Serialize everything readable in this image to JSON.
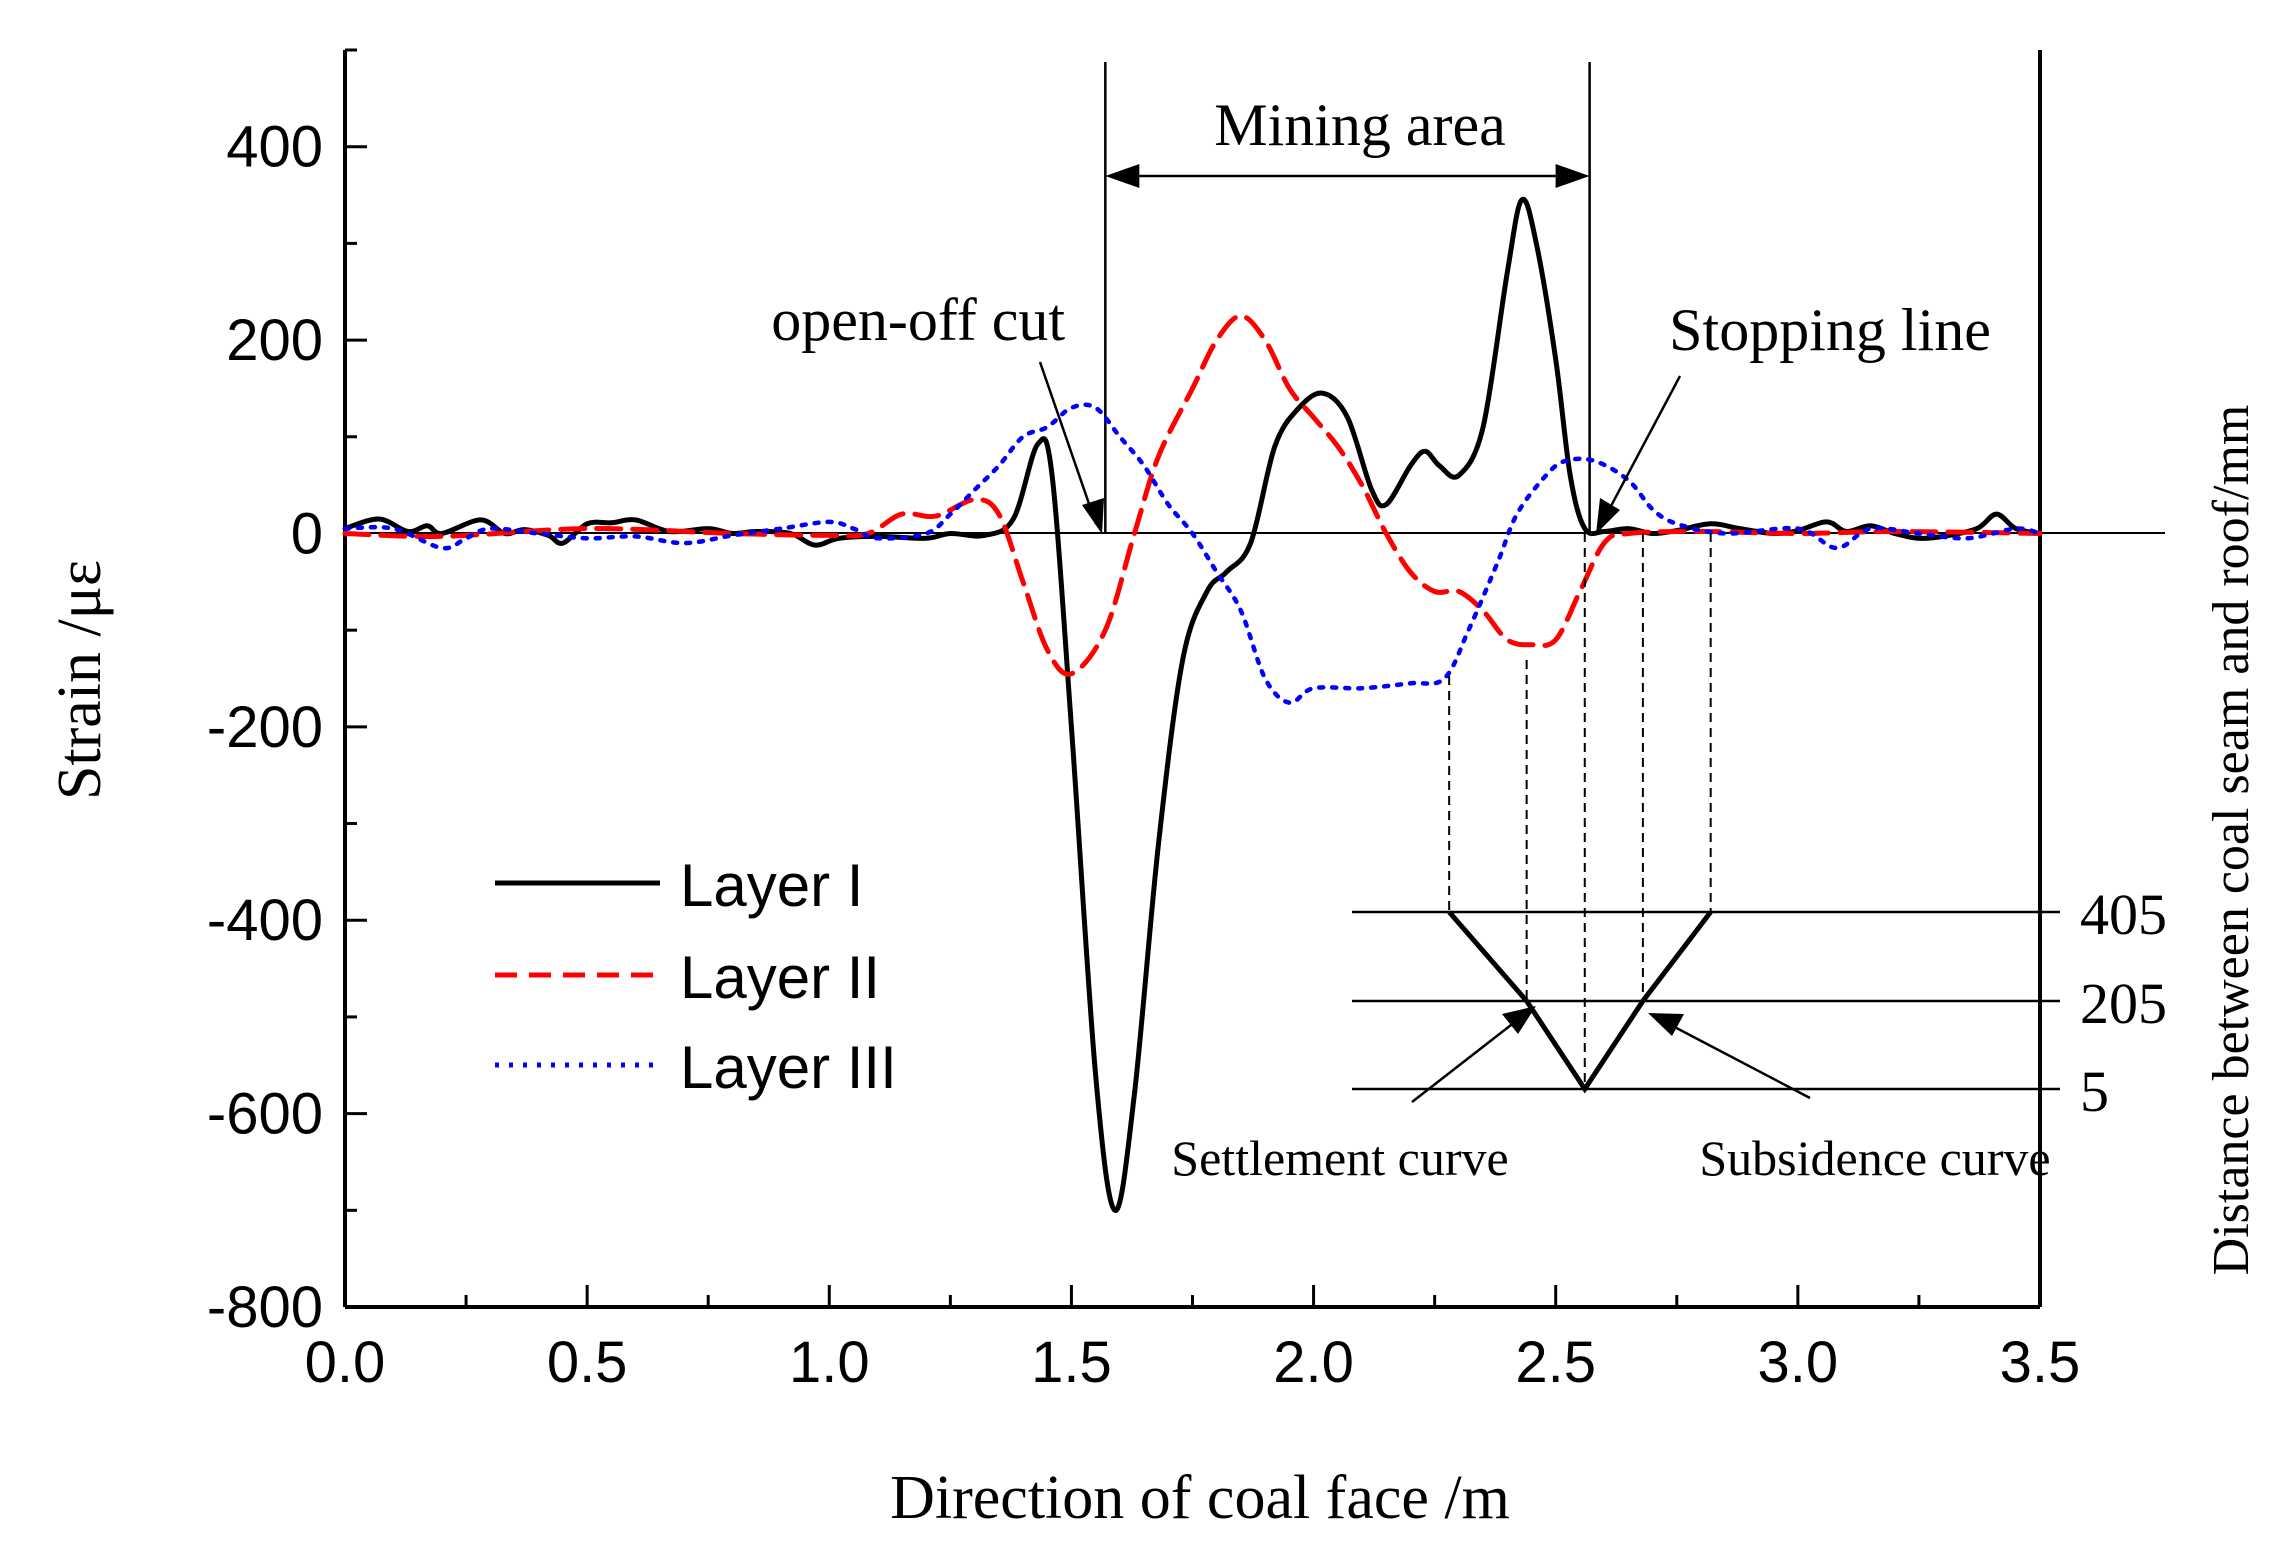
{
  "chart_data": {
    "type": "line",
    "xlabel": "Direction of coal face  /m",
    "ylabel": "Strain  /με",
    "y2label": "Distance between coal seam and roof/mm",
    "xlim": [
      0,
      3.5
    ],
    "ylim": [
      -800,
      500
    ],
    "x_ticks": [
      "0.0",
      "0.5",
      "1.0",
      "1.5",
      "2.0",
      "2.5",
      "3.0",
      "3.5"
    ],
    "y_ticks": [
      "400",
      "200",
      "0",
      "-200",
      "-400",
      "-600",
      "-800"
    ],
    "legend_position": "lower-left",
    "series": [
      {
        "name": "Layer I",
        "color": "#000000",
        "style": "solid",
        "points": [
          [
            0,
            5
          ],
          [
            0.07,
            15
          ],
          [
            0.13,
            2
          ],
          [
            0.17,
            8
          ],
          [
            0.2,
            0
          ],
          [
            0.28,
            14
          ],
          [
            0.33,
            0
          ],
          [
            0.37,
            4
          ],
          [
            0.42,
            -2
          ],
          [
            0.45,
            -10
          ],
          [
            0.5,
            10
          ],
          [
            0.55,
            11
          ],
          [
            0.6,
            14
          ],
          [
            0.67,
            2
          ],
          [
            0.75,
            5
          ],
          [
            0.8,
            0
          ],
          [
            0.85,
            2
          ],
          [
            0.92,
            0
          ],
          [
            0.97,
            -12
          ],
          [
            1.02,
            -5
          ],
          [
            1.1,
            -3
          ],
          [
            1.2,
            -5
          ],
          [
            1.25,
            0
          ],
          [
            1.32,
            -2
          ],
          [
            1.38,
            15
          ],
          [
            1.43,
            92
          ],
          [
            1.46,
            60
          ],
          [
            1.5,
            -200
          ],
          [
            1.55,
            -560
          ],
          [
            1.59,
            -700
          ],
          [
            1.63,
            -580
          ],
          [
            1.68,
            -320
          ],
          [
            1.73,
            -130
          ],
          [
            1.78,
            -60
          ],
          [
            1.82,
            -40
          ],
          [
            1.87,
            -10
          ],
          [
            1.92,
            90
          ],
          [
            1.97,
            130
          ],
          [
            2.02,
            145
          ],
          [
            2.07,
            120
          ],
          [
            2.12,
            45
          ],
          [
            2.15,
            30
          ],
          [
            2.2,
            70
          ],
          [
            2.23,
            85
          ],
          [
            2.26,
            70
          ],
          [
            2.3,
            60
          ],
          [
            2.35,
            110
          ],
          [
            2.4,
            270
          ],
          [
            2.43,
            345
          ],
          [
            2.46,
            300
          ],
          [
            2.5,
            180
          ],
          [
            2.53,
            60
          ],
          [
            2.56,
            5
          ],
          [
            2.6,
            2
          ],
          [
            2.65,
            5
          ],
          [
            2.7,
            0
          ],
          [
            2.75,
            3
          ],
          [
            2.82,
            10
          ],
          [
            2.88,
            5
          ],
          [
            2.95,
            0
          ],
          [
            3.0,
            3
          ],
          [
            3.06,
            12
          ],
          [
            3.1,
            2
          ],
          [
            3.15,
            8
          ],
          [
            3.2,
            0
          ],
          [
            3.25,
            -5
          ],
          [
            3.3,
            -3
          ],
          [
            3.37,
            5
          ],
          [
            3.41,
            20
          ],
          [
            3.45,
            5
          ],
          [
            3.5,
            0
          ]
        ]
      },
      {
        "name": "Layer II",
        "color": "#ff0000",
        "style": "dashed",
        "points": [
          [
            0,
            0
          ],
          [
            0.2,
            -3
          ],
          [
            0.5,
            5
          ],
          [
            0.8,
            0
          ],
          [
            1.0,
            -2
          ],
          [
            1.08,
            0
          ],
          [
            1.15,
            20
          ],
          [
            1.22,
            18
          ],
          [
            1.3,
            35
          ],
          [
            1.35,
            20
          ],
          [
            1.4,
            -50
          ],
          [
            1.45,
            -120
          ],
          [
            1.5,
            -145
          ],
          [
            1.57,
            -100
          ],
          [
            1.63,
            0
          ],
          [
            1.68,
            80
          ],
          [
            1.75,
            150
          ],
          [
            1.8,
            200
          ],
          [
            1.85,
            225
          ],
          [
            1.9,
            200
          ],
          [
            1.95,
            150
          ],
          [
            2.0,
            120
          ],
          [
            2.05,
            90
          ],
          [
            2.1,
            50
          ],
          [
            2.15,
            0
          ],
          [
            2.2,
            -40
          ],
          [
            2.25,
            -60
          ],
          [
            2.3,
            -60
          ],
          [
            2.35,
            -80
          ],
          [
            2.4,
            -110
          ],
          [
            2.45,
            -115
          ],
          [
            2.5,
            -110
          ],
          [
            2.55,
            -60
          ],
          [
            2.6,
            -10
          ],
          [
            2.65,
            0
          ],
          [
            2.8,
            2
          ],
          [
            3.0,
            0
          ],
          [
            3.2,
            2
          ],
          [
            3.5,
            0
          ]
        ]
      },
      {
        "name": "Layer III",
        "color": "#0000ff",
        "style": "dotted",
        "points": [
          [
            0,
            5
          ],
          [
            0.1,
            5
          ],
          [
            0.2,
            -15
          ],
          [
            0.25,
            -5
          ],
          [
            0.3,
            5
          ],
          [
            0.4,
            0
          ],
          [
            0.5,
            -5
          ],
          [
            0.6,
            -3
          ],
          [
            0.7,
            -10
          ],
          [
            0.8,
            -2
          ],
          [
            0.9,
            5
          ],
          [
            1.0,
            12
          ],
          [
            1.05,
            5
          ],
          [
            1.1,
            -5
          ],
          [
            1.2,
            0
          ],
          [
            1.25,
            20
          ],
          [
            1.3,
            45
          ],
          [
            1.35,
            70
          ],
          [
            1.4,
            100
          ],
          [
            1.45,
            110
          ],
          [
            1.5,
            130
          ],
          [
            1.55,
            130
          ],
          [
            1.6,
            100
          ],
          [
            1.65,
            70
          ],
          [
            1.7,
            30
          ],
          [
            1.75,
            0
          ],
          [
            1.8,
            -40
          ],
          [
            1.85,
            -80
          ],
          [
            1.9,
            -150
          ],
          [
            1.95,
            -175
          ],
          [
            2.0,
            -160
          ],
          [
            2.1,
            -160
          ],
          [
            2.2,
            -155
          ],
          [
            2.27,
            -150
          ],
          [
            2.32,
            -100
          ],
          [
            2.38,
            -30
          ],
          [
            2.42,
            20
          ],
          [
            2.48,
            60
          ],
          [
            2.52,
            75
          ],
          [
            2.58,
            75
          ],
          [
            2.65,
            55
          ],
          [
            2.7,
            25
          ],
          [
            2.75,
            10
          ],
          [
            2.85,
            0
          ],
          [
            3.0,
            5
          ],
          [
            3.08,
            -15
          ],
          [
            3.15,
            5
          ],
          [
            3.25,
            0
          ],
          [
            3.35,
            -5
          ],
          [
            3.45,
            5
          ],
          [
            3.5,
            0
          ]
        ]
      }
    ],
    "annotations": {
      "mining_area": "Mining area",
      "open_off_cut": "open-off cut",
      "stopping_line": "Stopping line",
      "settlement_curve": "Settlement curve",
      "subsidence_curve": "Subsidence curve"
    },
    "inset": {
      "levels": [
        "405",
        "205",
        "5"
      ],
      "x_points": [
        2.28,
        2.44,
        2.56,
        2.68,
        2.82
      ]
    }
  }
}
